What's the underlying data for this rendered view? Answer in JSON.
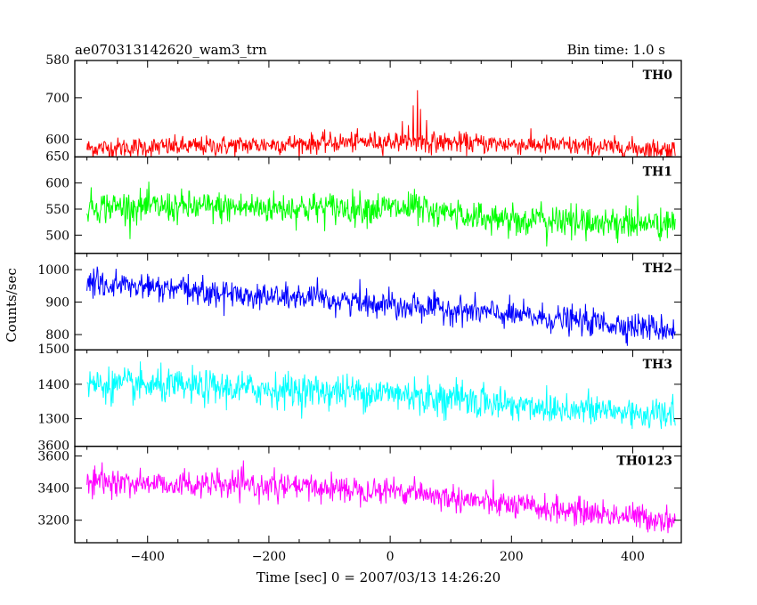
{
  "header": {
    "title": "ae070313142620_wam3_trn",
    "bin_time": "Bin time: 1.0 s"
  },
  "axes": {
    "xlabel": "Time [sec] 0 = 2007/03/13 14:26:20",
    "ylabel": "Counts/sec"
  },
  "chart_data": {
    "type": "line",
    "title": "ae070313142620_wam3_trn",
    "subtitle": "Bin time: 1.0 s",
    "xlabel": "Time [sec] 0 = 2007/03/13 14:26:20",
    "ylabel": "Counts/sec",
    "xlim": [
      -520,
      480
    ],
    "x_range": [
      -500,
      470
    ],
    "bin_time_s": 1.0,
    "xticks": [
      -400,
      -200,
      0,
      200,
      400
    ],
    "xtick_labels": [
      "−400",
      "−200",
      "0",
      "200",
      "400"
    ],
    "grid": false,
    "legend": "none",
    "panels": [
      {
        "name": "TH0",
        "color": "#ff0000",
        "ylim": [
          557,
          790
        ],
        "yticks": [
          600,
          700
        ],
        "ytick_labels": [
          "600",
          "700"
        ],
        "top_label": "580",
        "trend": [
          [
            -500,
            578
          ],
          [
            -300,
            583
          ],
          [
            0,
            595
          ],
          [
            200,
            588
          ],
          [
            470,
            575
          ]
        ],
        "noise": 22,
        "spikes": [
          [
            20,
            40
          ],
          [
            30,
            70
          ],
          [
            38,
            130
          ],
          [
            45,
            190
          ],
          [
            50,
            90
          ],
          [
            60,
            40
          ]
        ]
      },
      {
        "name": "TH1",
        "color": "#00ff00",
        "ylim": [
          465,
          650
        ],
        "yticks": [
          500,
          550,
          600
        ],
        "ytick_labels": [
          "500",
          "550",
          "600"
        ],
        "top_label": "650",
        "trend": [
          [
            -500,
            555
          ],
          [
            -300,
            553
          ],
          [
            0,
            552
          ],
          [
            200,
            530
          ],
          [
            470,
            520
          ]
        ],
        "noise": 28,
        "spikes": [
          [
            30,
            30
          ],
          [
            40,
            45
          ],
          [
            50,
            20
          ]
        ]
      },
      {
        "name": "TH2",
        "color": "#0000ff",
        "ylim": [
          753,
          1050
        ],
        "yticks": [
          800,
          900,
          1000
        ],
        "ytick_labels": [
          "800",
          "900",
          "1000"
        ],
        "top_label": "",
        "trend": [
          [
            -500,
            960
          ],
          [
            -300,
            930
          ],
          [
            0,
            895
          ],
          [
            200,
            860
          ],
          [
            470,
            815
          ]
        ],
        "noise": 38,
        "spikes": [
          [
            40,
            40
          ]
        ]
      },
      {
        "name": "TH3",
        "color": "#00ffff",
        "ylim": [
          1220,
          1500
        ],
        "yticks": [
          1300,
          1400
        ],
        "ytick_labels": [
          "1300",
          "1400"
        ],
        "top_label": "1500",
        "trend": [
          [
            -500,
            1400
          ],
          [
            -300,
            1390
          ],
          [
            0,
            1375
          ],
          [
            200,
            1340
          ],
          [
            470,
            1310
          ]
        ],
        "noise": 45,
        "spikes": [
          [
            40,
            40
          ]
        ]
      },
      {
        "name": "TH0123",
        "color": "#ff00ff",
        "ylim": [
          3060,
          3660
        ],
        "yticks": [
          3200,
          3400,
          3600
        ],
        "ytick_labels": [
          "3200",
          "3400",
          "3600"
        ],
        "top_label": "3600",
        "trend": [
          [
            -500,
            3440
          ],
          [
            -300,
            3420
          ],
          [
            0,
            3390
          ],
          [
            200,
            3290
          ],
          [
            470,
            3200
          ]
        ],
        "noise": 75,
        "spikes": [
          [
            30,
            80
          ],
          [
            40,
            120
          ],
          [
            50,
            60
          ]
        ]
      }
    ]
  }
}
